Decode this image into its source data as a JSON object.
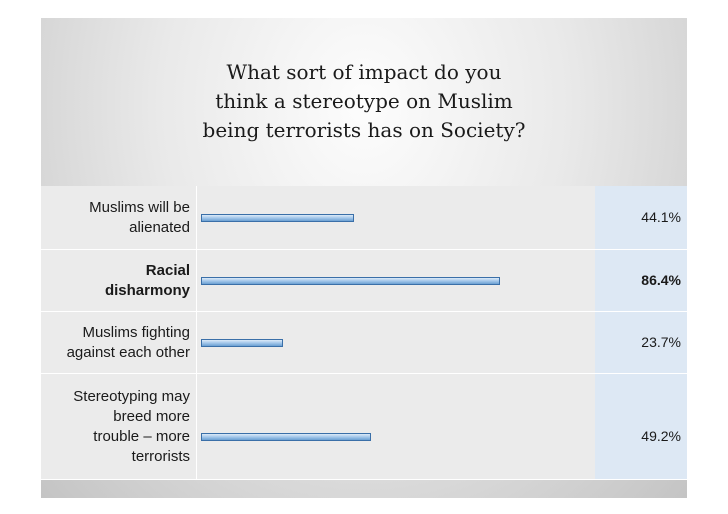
{
  "chart_data": {
    "type": "bar",
    "orientation": "horizontal",
    "title": "What sort of impact do you think a stereotype on Muslim being terrorists has on Society?",
    "title_lines": [
      "What sort of impact do you",
      "think a stereotype on Muslim",
      "being terrorists has on Society?"
    ],
    "xlim": [
      0,
      100
    ],
    "categories": [
      {
        "label_lines": [
          "Muslims will be",
          "alienated"
        ],
        "label": "Muslims will be alienated",
        "value": 44.1,
        "value_label": "44.1%",
        "highlight": false
      },
      {
        "label_lines": [
          "Racial",
          "disharmony"
        ],
        "label": "Racial disharmony",
        "value": 86.4,
        "value_label": "86.4%",
        "highlight": true
      },
      {
        "label_lines": [
          "Muslims fighting",
          "against each other"
        ],
        "label": "Muslims fighting against each other",
        "value": 23.7,
        "value_label": "23.7%",
        "highlight": false
      },
      {
        "label_lines": [
          "Stereotyping may",
          "breed more",
          "trouble – more",
          "terrorists"
        ],
        "label": "Stereotyping may breed more trouble – more terrorists",
        "value": 49.2,
        "value_label": "49.2%",
        "highlight": false
      }
    ],
    "colors": {
      "bar_fill": "#9dc3e8",
      "bar_border": "#3a6fa8",
      "value_column": "#dde8f4",
      "row_bg": "#ebebeb"
    }
  }
}
